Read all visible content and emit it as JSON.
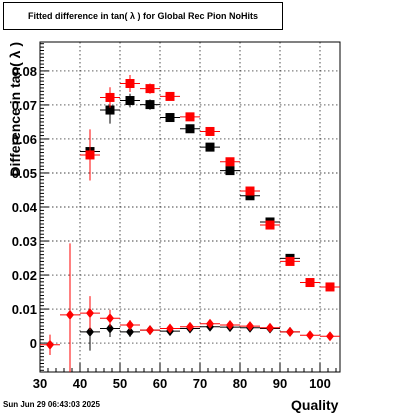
{
  "title": "Fitted difference in tan( λ ) for Global Rec Pion NoHits",
  "footer_date": "Sun Jun 29 06:43:03 2025",
  "colors": {
    "series_a": "#000000",
    "series_b": "#ff0000",
    "grid": "#000000"
  },
  "chart_data": {
    "type": "scatter",
    "title": "Fitted difference in tan( λ ) for Global Rec Pion NoHits",
    "xlabel": "Quality",
    "ylabel": "Difference in tan( λ )",
    "xlim": [
      30,
      105
    ],
    "ylim": [
      -0.0085,
      0.0885
    ],
    "grid": true,
    "x_ticks": [
      30,
      40,
      50,
      60,
      70,
      80,
      90,
      100
    ],
    "x_tick_labels": [
      "30",
      "40",
      "50",
      "60",
      "70",
      "80",
      "90",
      "100"
    ],
    "y_ticks": [
      0,
      0.01,
      0.02,
      0.03,
      0.04,
      0.05,
      0.06,
      0.07,
      0.08
    ],
    "y_tick_labels": [
      "0",
      "0.01",
      "0.02",
      "0.03",
      "0.04",
      "0.05",
      "0.06",
      "0.07",
      "0.08"
    ],
    "series": [
      {
        "marker": "square",
        "color": "#000000",
        "points": [
          {
            "x": 42.5,
            "y": 0.0563,
            "yerr": 0.0035
          },
          {
            "x": 47.5,
            "y": 0.0685,
            "yerr": 0.004
          },
          {
            "x": 52.5,
            "y": 0.0713,
            "yerr": 0.002
          },
          {
            "x": 57.5,
            "y": 0.0701,
            "yerr": 0.0015
          },
          {
            "x": 62.5,
            "y": 0.0663,
            "yerr": 0.001
          },
          {
            "x": 67.5,
            "y": 0.063,
            "yerr": 0.001
          },
          {
            "x": 72.5,
            "y": 0.0576,
            "yerr": 0.001
          },
          {
            "x": 77.5,
            "y": 0.0507,
            "yerr": 0.001
          },
          {
            "x": 82.5,
            "y": 0.0433,
            "yerr": 0.001
          },
          {
            "x": 87.5,
            "y": 0.0356,
            "yerr": 0.001
          },
          {
            "x": 92.5,
            "y": 0.0249,
            "yerr": 0.0005
          }
        ]
      },
      {
        "marker": "square",
        "color": "#ff0000",
        "points": [
          {
            "x": 42.5,
            "y": 0.0553,
            "yerr": 0.0075
          },
          {
            "x": 47.5,
            "y": 0.0722,
            "yerr": 0.003
          },
          {
            "x": 52.5,
            "y": 0.0763,
            "yerr": 0.0025
          },
          {
            "x": 57.5,
            "y": 0.0748,
            "yerr": 0.0015
          },
          {
            "x": 62.5,
            "y": 0.0725,
            "yerr": 0.001
          },
          {
            "x": 67.5,
            "y": 0.0665,
            "yerr": 0.001
          },
          {
            "x": 72.5,
            "y": 0.0622,
            "yerr": 0.001
          },
          {
            "x": 77.5,
            "y": 0.0533,
            "yerr": 0.001
          },
          {
            "x": 82.5,
            "y": 0.0447,
            "yerr": 0.001
          },
          {
            "x": 87.5,
            "y": 0.0347,
            "yerr": 0.001
          },
          {
            "x": 92.5,
            "y": 0.024,
            "yerr": 0.0005
          },
          {
            "x": 97.5,
            "y": 0.0178,
            "yerr": 0.0004
          },
          {
            "x": 102.5,
            "y": 0.0165,
            "yerr": 0.0004
          }
        ]
      },
      {
        "marker": "diamond",
        "color": "#000000",
        "points": [
          {
            "x": 42.5,
            "y": 0.0033,
            "yerr": 0.0055
          },
          {
            "x": 47.5,
            "y": 0.0043,
            "yerr": 0.0025
          },
          {
            "x": 52.5,
            "y": 0.0033,
            "yerr": 0.0015
          },
          {
            "x": 57.5,
            "y": 0.0038,
            "yerr": 0.0008
          },
          {
            "x": 62.5,
            "y": 0.0035,
            "yerr": 0.0005
          },
          {
            "x": 67.5,
            "y": 0.0043,
            "yerr": 0.0004
          },
          {
            "x": 72.5,
            "y": 0.0048,
            "yerr": 0.0004
          },
          {
            "x": 77.5,
            "y": 0.0047,
            "yerr": 0.0003
          },
          {
            "x": 82.5,
            "y": 0.0045,
            "yerr": 0.0003
          },
          {
            "x": 87.5,
            "y": 0.0043,
            "yerr": 0.0003
          },
          {
            "x": 92.5,
            "y": 0.0033,
            "yerr": 0.0003
          }
        ]
      },
      {
        "marker": "diamond",
        "color": "#ff0000",
        "points": [
          {
            "x": 32.5,
            "y": -0.0005,
            "yerr": 0.003
          },
          {
            "x": 37.5,
            "y": 0.0083,
            "yerr": 0.021
          },
          {
            "x": 42.5,
            "y": 0.0088,
            "yerr": 0.005
          },
          {
            "x": 47.5,
            "y": 0.0073,
            "yerr": 0.0025
          },
          {
            "x": 52.5,
            "y": 0.0053,
            "yerr": 0.0015
          },
          {
            "x": 57.5,
            "y": 0.0038,
            "yerr": 0.0008
          },
          {
            "x": 62.5,
            "y": 0.0043,
            "yerr": 0.0006
          },
          {
            "x": 67.5,
            "y": 0.0048,
            "yerr": 0.0005
          },
          {
            "x": 72.5,
            "y": 0.0057,
            "yerr": 0.0004
          },
          {
            "x": 77.5,
            "y": 0.0053,
            "yerr": 0.0004
          },
          {
            "x": 82.5,
            "y": 0.005,
            "yerr": 0.0003
          },
          {
            "x": 87.5,
            "y": 0.0045,
            "yerr": 0.0003
          },
          {
            "x": 92.5,
            "y": 0.0033,
            "yerr": 0.0003
          },
          {
            "x": 97.5,
            "y": 0.0023,
            "yerr": 0.0003
          },
          {
            "x": 102.5,
            "y": 0.002,
            "yerr": 0.0003
          }
        ]
      }
    ]
  }
}
